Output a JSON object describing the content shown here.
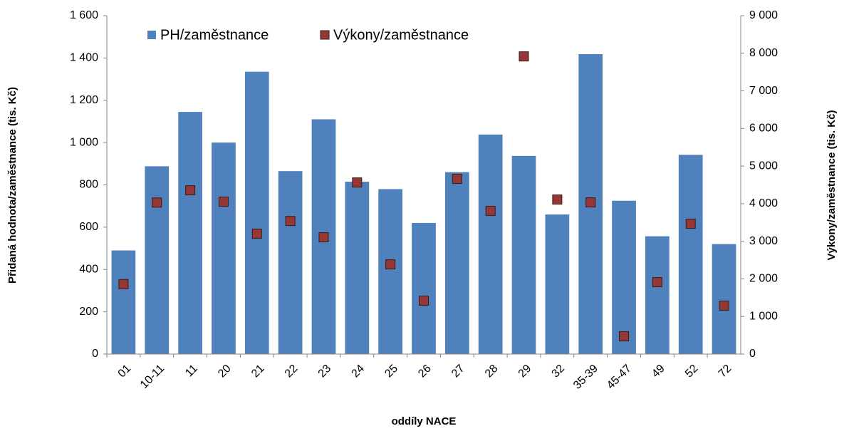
{
  "chart_data": {
    "type": "bar_scatter",
    "x_label": "oddíly NACE",
    "y_label": "Přidaná hodnota/zaměstnance  (tis. Kč)",
    "y2_label": "Výkony/zaměstnance (tis. Kč)",
    "categories": [
      "01",
      "10-11",
      "11",
      "20",
      "21",
      "22",
      "23",
      "24",
      "25",
      "26",
      "27",
      "28",
      "29",
      "32",
      "35-39",
      "45-47",
      "49",
      "52",
      "72"
    ],
    "series": [
      {
        "name": "PH/zaměstnance",
        "type": "bar",
        "color": "#4f81bd",
        "values": [
          490,
          888,
          1145,
          1000,
          1335,
          865,
          1110,
          815,
          780,
          620,
          860,
          1038,
          937,
          660,
          1418,
          725,
          557,
          942,
          520
        ]
      },
      {
        "name": "Výkony/zaměstnance",
        "type": "scatter",
        "axis": "y2",
        "color": "#953735",
        "values": [
          1860,
          4030,
          4356,
          4053,
          3200,
          3540,
          3106,
          4564,
          2386,
          1420,
          4659,
          3807,
          7917,
          4110,
          4034,
          473,
          1913,
          3466,
          1288
        ]
      }
    ],
    "ylim": [
      0,
      1600
    ],
    "yticks": [
      0,
      200,
      400,
      600,
      800,
      {
        "value": 1000,
        "label": "1 000"
      },
      {
        "value": 1200,
        "label": "1 200"
      },
      {
        "value": 1400,
        "label": "1 400"
      },
      {
        "value": 1600,
        "label": "1 600"
      }
    ],
    "y2lim": [
      0,
      9000
    ],
    "y2ticks": [
      0,
      {
        "value": 1000,
        "label": "1 000"
      },
      {
        "value": 2000,
        "label": "2 000"
      },
      {
        "value": 3000,
        "label": "3 000"
      },
      {
        "value": 4000,
        "label": "4 000"
      },
      {
        "value": 5000,
        "label": "5 000"
      },
      {
        "value": 6000,
        "label": "6 000"
      },
      {
        "value": 7000,
        "label": "7 000"
      },
      {
        "value": 8000,
        "label": "8 000"
      },
      {
        "value": 9000,
        "label": "9 000"
      }
    ],
    "legend": "top"
  }
}
